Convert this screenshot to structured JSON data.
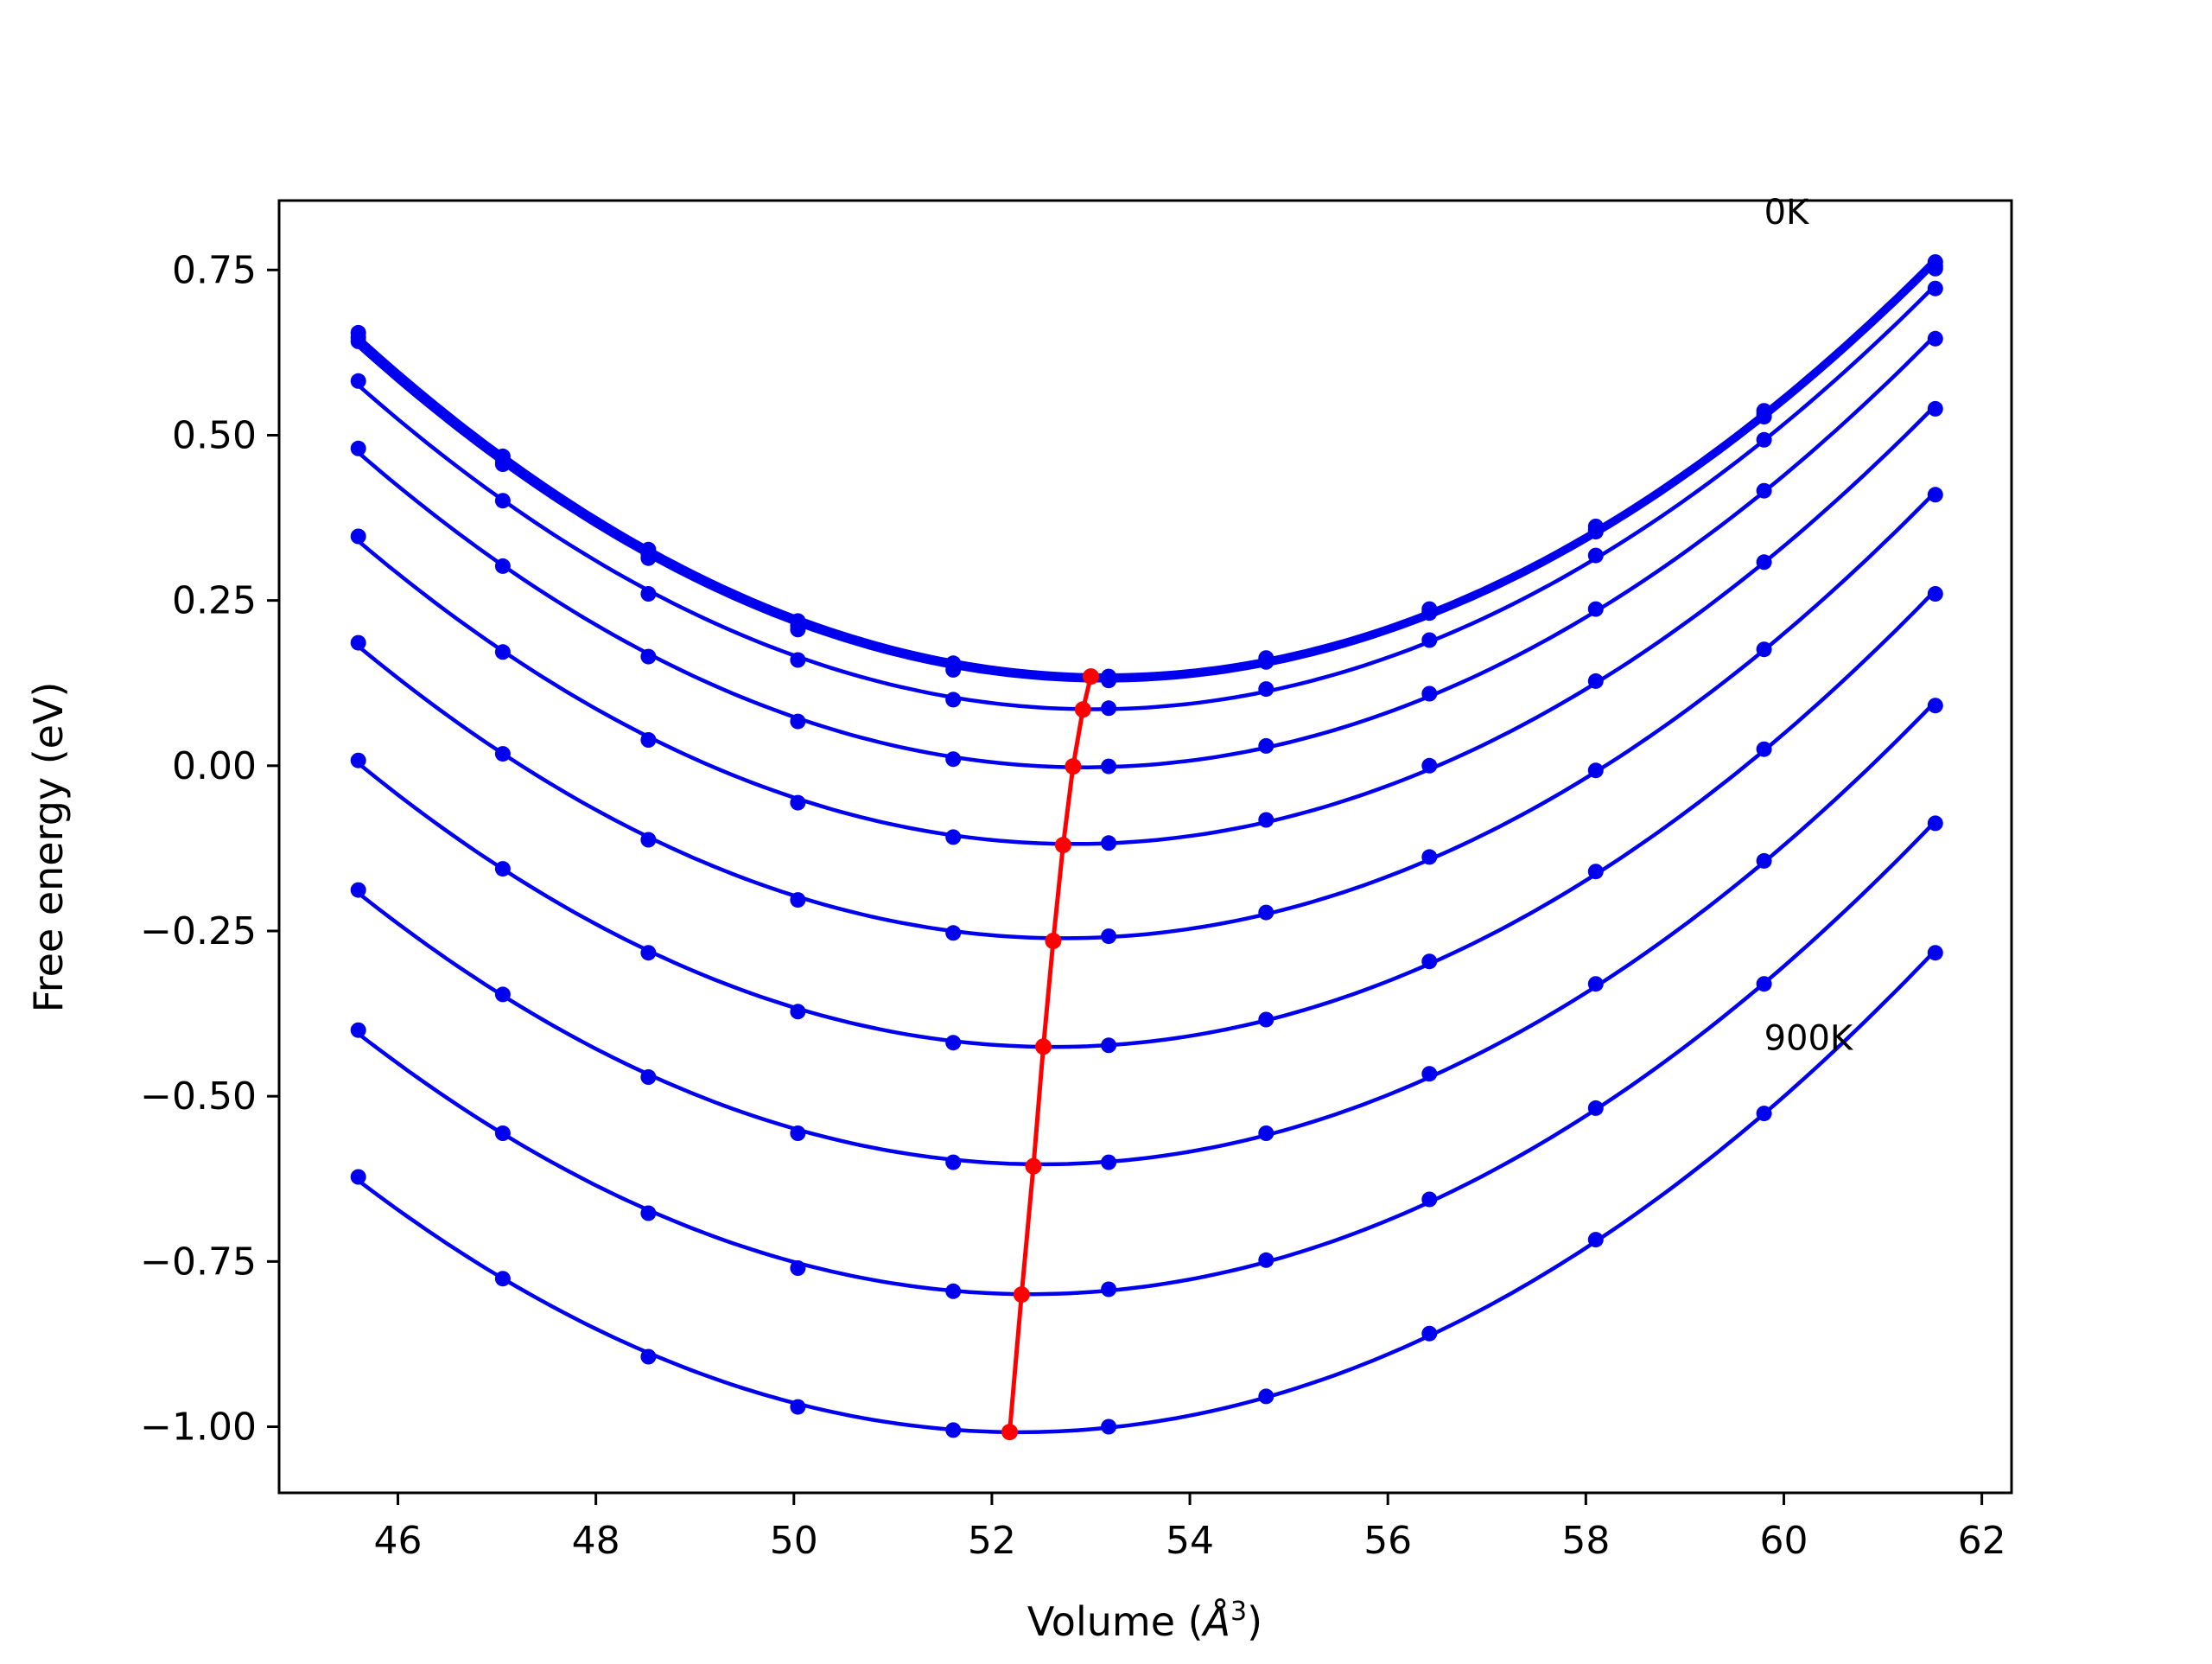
{
  "chart_data": {
    "type": "line",
    "title": "",
    "xlabel": "Volume (",
    "xlabel_symbol": "Å",
    "xlabel_exponent": "3",
    "xlabel_close": ")",
    "ylabel": "Free energy (eV)",
    "xlim": [
      44.8,
      62.3
    ],
    "ylim": [
      -1.1,
      0.855
    ],
    "xticks": [
      46,
      48,
      50,
      52,
      54,
      56,
      58,
      60,
      62
    ],
    "xtick_labels": [
      "46",
      "48",
      "50",
      "52",
      "54",
      "56",
      "58",
      "60",
      "62"
    ],
    "yticks": [
      0.75,
      0.5,
      0.25,
      0.0,
      -0.25,
      -0.5,
      -0.75,
      -1.0
    ],
    "ytick_labels": [
      "0.75",
      "0.50",
      "0.25",
      "0.00",
      "−0.25",
      "−0.50",
      "−0.75",
      "−1.00"
    ],
    "grid": false,
    "colors": {
      "curves": "#0000ee",
      "minimum_line": "#ff0000",
      "frame": "#000000"
    },
    "x": [
      45.6,
      47.06,
      48.53,
      50.04,
      51.61,
      53.18,
      54.77,
      56.42,
      58.1,
      59.8,
      61.53
    ],
    "series": [
      {
        "values": [
          0.655,
          0.468,
          0.327,
          0.219,
          0.155,
          0.135,
          0.163,
          0.237,
          0.362,
          0.537,
          0.762
        ]
      },
      {
        "values": [
          0.648,
          0.462,
          0.32,
          0.212,
          0.15,
          0.132,
          0.16,
          0.233,
          0.357,
          0.532,
          0.756
        ]
      },
      {
        "values": [
          0.642,
          0.456,
          0.314,
          0.206,
          0.145,
          0.129,
          0.157,
          0.231,
          0.354,
          0.528,
          0.752
        ]
      },
      {
        "values": [
          0.582,
          0.401,
          0.26,
          0.16,
          0.1,
          0.087,
          0.116,
          0.19,
          0.318,
          0.493,
          0.722
        ]
      },
      {
        "values": [
          0.48,
          0.302,
          0.165,
          0.067,
          0.01,
          -0.001,
          0.03,
          0.109,
          0.237,
          0.416,
          0.646
        ]
      },
      {
        "values": [
          0.347,
          0.172,
          0.039,
          -0.056,
          -0.108,
          -0.117,
          -0.082,
          0.0,
          0.128,
          0.308,
          0.54
        ]
      },
      {
        "values": [
          0.186,
          0.018,
          -0.112,
          -0.203,
          -0.253,
          -0.258,
          -0.222,
          -0.138,
          -0.007,
          0.176,
          0.41
        ]
      },
      {
        "values": [
          0.008,
          -0.156,
          -0.283,
          -0.372,
          -0.419,
          -0.423,
          -0.384,
          -0.296,
          -0.16,
          0.025,
          0.26
        ]
      },
      {
        "values": [
          -0.188,
          -0.346,
          -0.471,
          -0.556,
          -0.6,
          -0.6,
          -0.556,
          -0.466,
          -0.33,
          -0.144,
          0.091
        ]
      },
      {
        "values": [
          -0.4,
          -0.556,
          -0.677,
          -0.76,
          -0.795,
          -0.792,
          -0.748,
          -0.656,
          -0.518,
          -0.33,
          -0.087
        ]
      },
      {
        "values": [
          -0.622,
          -0.776,
          -0.894,
          -0.97,
          -1.005,
          -1.0,
          -0.954,
          -0.859,
          -0.717,
          -0.526,
          -0.283
        ]
      }
    ],
    "minimum_line": {
      "x": [
        53.0,
        52.92,
        52.82,
        52.72,
        52.62,
        52.52,
        52.42,
        52.3,
        52.18
      ],
      "y": [
        0.135,
        0.085,
        -0.001,
        -0.12,
        -0.265,
        -0.425,
        -0.606,
        -0.8,
        -1.008
      ]
    },
    "annotations": [
      {
        "text": "0K",
        "x": 59.8,
        "y": 0.82
      },
      {
        "text": "900K",
        "x": 59.8,
        "y": -0.43
      }
    ]
  }
}
